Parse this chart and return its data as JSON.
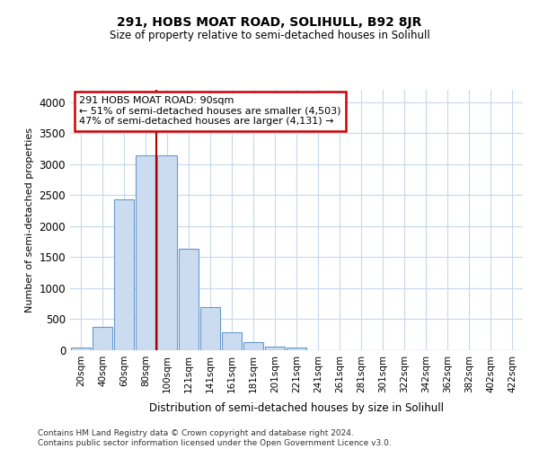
{
  "title": "291, HOBS MOAT ROAD, SOLIHULL, B92 8JR",
  "subtitle": "Size of property relative to semi-detached houses in Solihull",
  "xlabel": "Distribution of semi-detached houses by size in Solihull",
  "ylabel": "Number of semi-detached properties",
  "footnote": "Contains HM Land Registry data © Crown copyright and database right 2024.\nContains public sector information licensed under the Open Government Licence v3.0.",
  "bar_labels": [
    "20sqm",
    "40sqm",
    "60sqm",
    "80sqm",
    "100sqm",
    "121sqm",
    "141sqm",
    "161sqm",
    "181sqm",
    "201sqm",
    "221sqm",
    "241sqm",
    "261sqm",
    "281sqm",
    "301sqm",
    "322sqm",
    "342sqm",
    "362sqm",
    "382sqm",
    "402sqm",
    "422sqm"
  ],
  "bar_values": [
    50,
    380,
    2430,
    3150,
    3150,
    1630,
    700,
    290,
    130,
    60,
    50,
    0,
    0,
    0,
    0,
    0,
    0,
    0,
    0,
    0,
    0
  ],
  "bar_color": "#ccdcf0",
  "bar_edge_color": "#6699cc",
  "red_line_x": 3.5,
  "annotation_text": "291 HOBS MOAT ROAD: 90sqm\n← 51% of semi-detached houses are smaller (4,503)\n47% of semi-detached houses are larger (4,131) →",
  "annotation_box_color": "#cc0000",
  "ylim": [
    0,
    4200
  ],
  "yticks": [
    0,
    500,
    1000,
    1500,
    2000,
    2500,
    3000,
    3500,
    4000
  ],
  "bg_color": "#ffffff",
  "grid_color": "#c8d8ec"
}
